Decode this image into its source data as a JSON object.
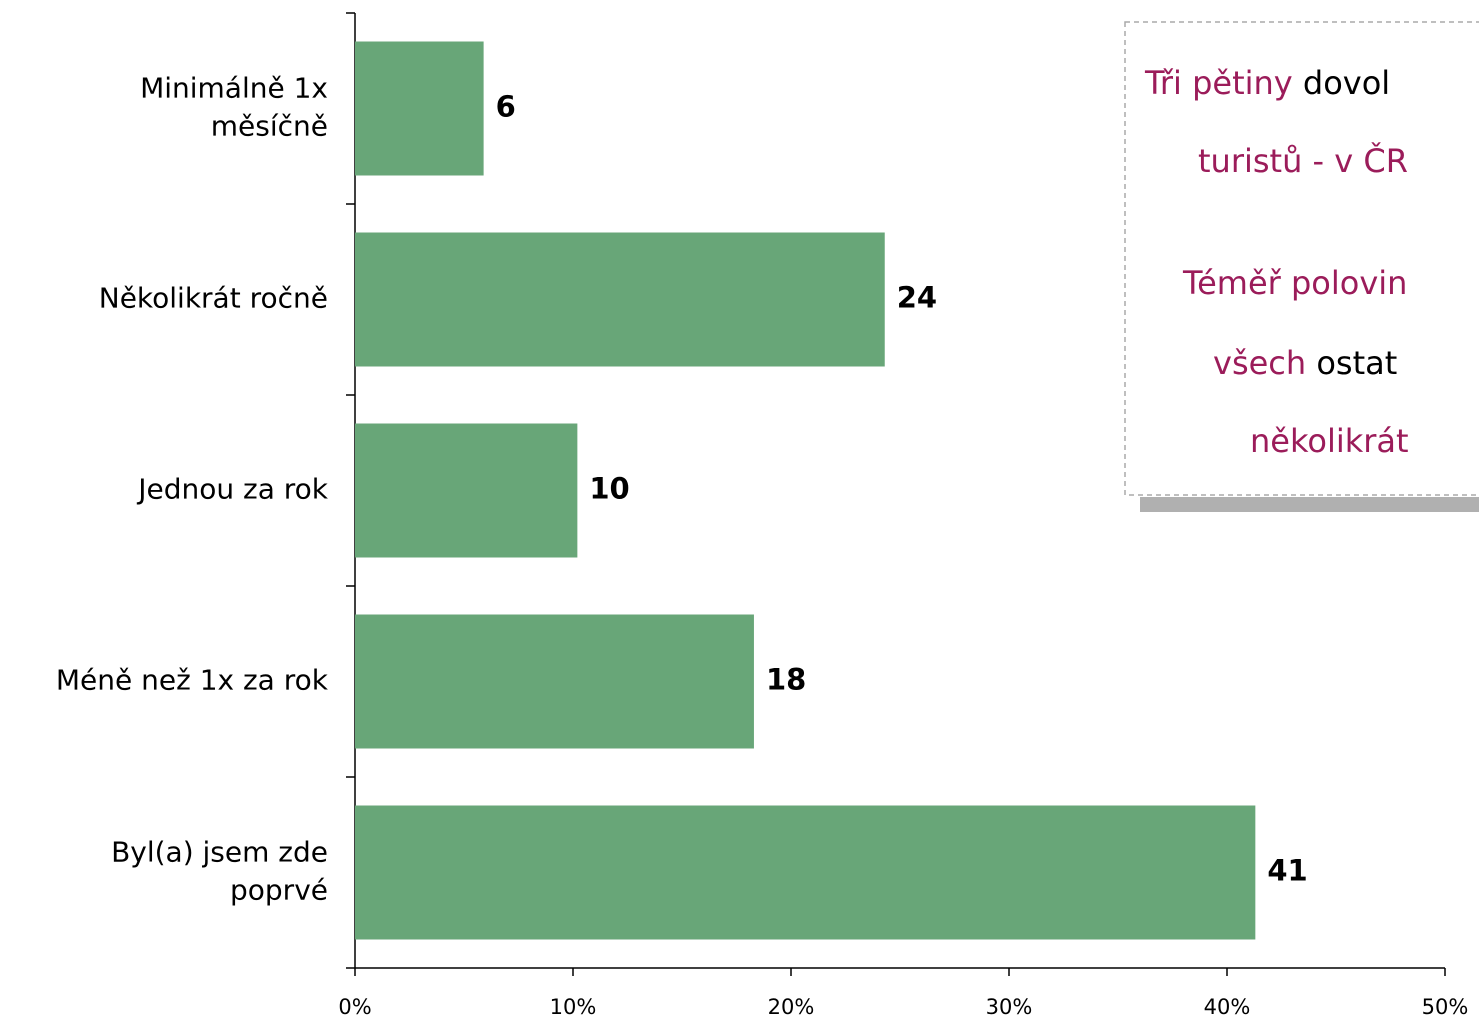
{
  "chart_data": {
    "type": "hbar",
    "categories": [
      "Minimálně 1x\nměsíčně",
      "Několikrát ročně",
      "Jednou za rok",
      "Méně než 1x za rok",
      "Byl(a) jsem zde\npoprvé"
    ],
    "values": [
      5.9,
      24.3,
      10.2,
      18.3,
      41.3
    ],
    "value_labels": [
      "6",
      "24",
      "10",
      "18",
      "41"
    ],
    "color": "#68a678",
    "xlim": [
      0,
      50
    ],
    "xticks": [
      {
        "value": 0,
        "label": "0%"
      },
      {
        "value": 10,
        "label": "10%"
      },
      {
        "value": 20,
        "label": "20%"
      },
      {
        "value": 30,
        "label": "30%"
      },
      {
        "value": 40,
        "label": "40%"
      },
      {
        "value": 50,
        "label": "50%"
      }
    ],
    "annotation": {
      "lines": [
        [
          {
            "text": "Tři pětiny",
            "color": "#9b1c5a"
          },
          {
            "text": " dovol",
            "color": "#000000"
          }
        ],
        [
          {
            "text": "turistů - v ČR",
            "color": "#9b1c5a"
          }
        ],
        [
          {
            "text": "Téměř polovin",
            "color": "#9b1c5a"
          }
        ],
        [
          {
            "text": "všech",
            "color": "#9b1c5a"
          },
          {
            "text": " ostat",
            "color": "#000000"
          }
        ],
        [
          {
            "text": "několikrát",
            "color": "#9b1c5a"
          }
        ]
      ]
    }
  }
}
